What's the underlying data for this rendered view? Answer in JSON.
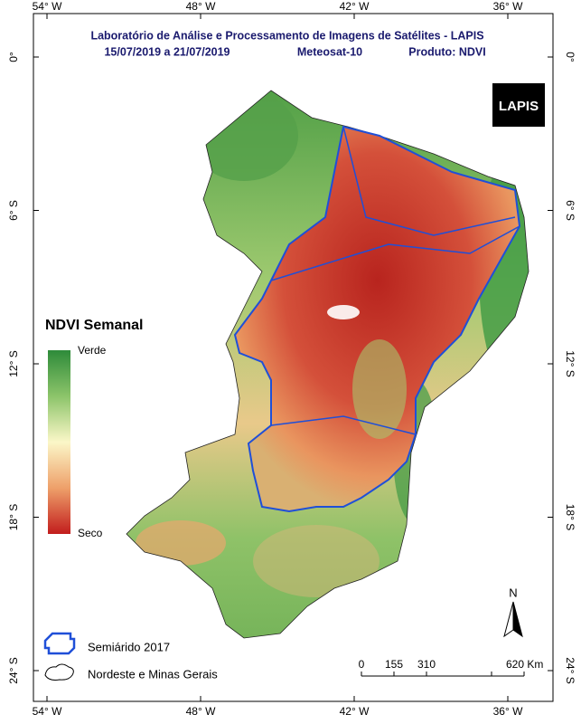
{
  "header": {
    "title": "Laboratório de Análise e Processamento de Imagens de Satélites - LAPIS",
    "period": "15/07/2019 a 21/07/2019",
    "satellite": "Meteosat-10",
    "product": "Produto: NDVI"
  },
  "grid": {
    "longitude_labels": [
      "54° W",
      "48° W",
      "42° W",
      "36° W"
    ],
    "latitude_labels": [
      "0°",
      "6° S",
      "12° S",
      "18° S",
      "24° S"
    ]
  },
  "legend": {
    "title": "NDVI Semanal",
    "high_label": "Verde",
    "low_label": "Seco",
    "layers": [
      "Semiárido 2017",
      "Nordeste e Minas Gerais"
    ]
  },
  "scale_bar": {
    "labels": [
      "0",
      "155",
      "310",
      "620 Km"
    ]
  },
  "north_arrow": "N",
  "logo": "LAPIS"
}
